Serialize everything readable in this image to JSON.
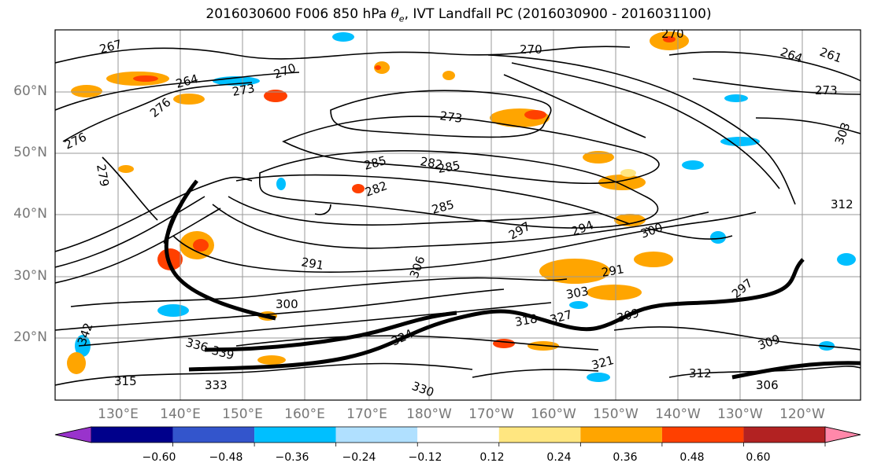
{
  "title": {
    "prefix": "2016030600 F006 850 hPa ",
    "symbol": "θ",
    "subscript": "e",
    "suffix": ", IVT Landfall PC (2016030900 - 2016031100)"
  },
  "map": {
    "lat_labels": [
      "60°N",
      "50°N",
      "40°N",
      "30°N",
      "20°N"
    ],
    "lon_labels": [
      "130°E",
      "140°E",
      "150°E",
      "160°E",
      "170°E",
      "180°W",
      "170°W",
      "160°W",
      "150°W",
      "140°W",
      "130°W",
      "120°W"
    ],
    "contour_labels": [
      "267",
      "264",
      "273",
      "270",
      "276",
      "270",
      "273",
      "273",
      "276",
      "279",
      "285",
      "282",
      "285",
      "282",
      "285",
      "291",
      "297",
      "294",
      "300",
      "291",
      "300",
      "306",
      "303",
      "312",
      "297",
      "318",
      "327",
      "336",
      "339",
      "342",
      "309",
      "315",
      "261",
      "264",
      "270",
      "303",
      "312",
      "306",
      "309",
      "321",
      "324",
      "330",
      "333"
    ]
  },
  "colorbar": {
    "ticks": [
      "−0.60",
      "−0.48",
      "−0.36",
      "−0.24",
      "−0.12",
      "0.12",
      "0.24",
      "0.36",
      "0.48",
      "0.60"
    ],
    "colors": [
      "#9933cc",
      "#00008b",
      "#3355cc",
      "#00bfff",
      "#b0e0ff",
      "#ffffff",
      "#ffe680",
      "#ffa500",
      "#ff4000",
      "#b22222",
      "#ff88aa"
    ]
  }
}
